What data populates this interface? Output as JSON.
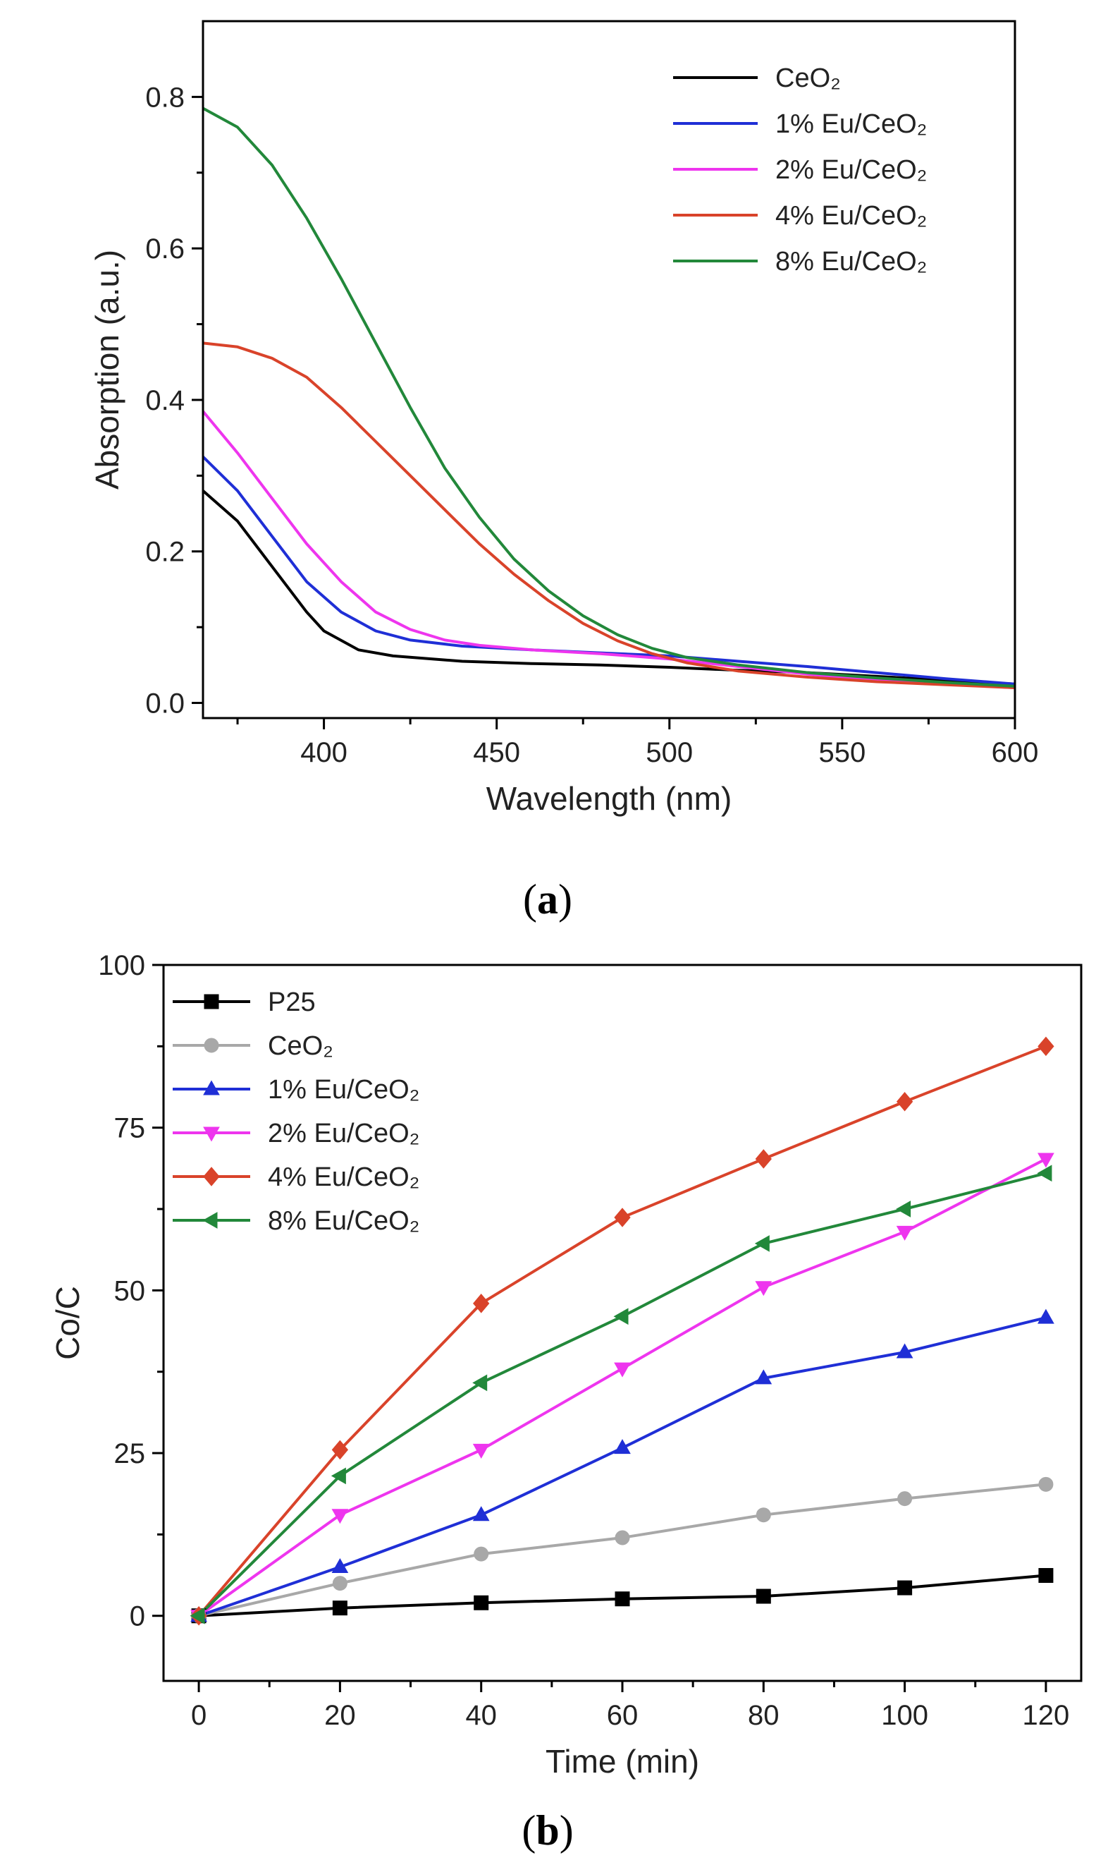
{
  "chart_data": [
    {
      "panel": "a",
      "panel_label": "a",
      "type": "line",
      "title": "",
      "xlabel": "Wavelength (nm)",
      "ylabel": "Absorption (a.u.)",
      "xlim": [
        365,
        600
      ],
      "ylim": [
        -0.02,
        0.9
      ],
      "xticks": [
        400,
        450,
        500,
        550,
        600
      ],
      "xtick_labels": [
        "400",
        "450",
        "500",
        "550",
        "600"
      ],
      "yticks": [
        0.0,
        0.2,
        0.4,
        0.6,
        0.8
      ],
      "ytick_labels": [
        "0.0",
        "0.2",
        "0.4",
        "0.6",
        "0.8"
      ],
      "legend_position": "top-right",
      "series": [
        {
          "name": "CeO₂",
          "color": "#000000",
          "x": [
            365,
            375,
            385,
            395,
            400,
            410,
            420,
            440,
            460,
            480,
            500,
            520,
            540,
            560,
            580,
            600
          ],
          "y": [
            0.28,
            0.24,
            0.18,
            0.12,
            0.095,
            0.07,
            0.062,
            0.055,
            0.052,
            0.05,
            0.047,
            0.043,
            0.04,
            0.035,
            0.03,
            0.025
          ]
        },
        {
          "name": "1% Eu/CeO₂",
          "color": "#1f2fd6",
          "x": [
            365,
            375,
            385,
            395,
            405,
            415,
            425,
            440,
            460,
            480,
            500,
            520,
            540,
            560,
            580,
            600
          ],
          "y": [
            0.325,
            0.28,
            0.22,
            0.16,
            0.12,
            0.095,
            0.083,
            0.075,
            0.07,
            0.066,
            0.062,
            0.055,
            0.048,
            0.04,
            0.032,
            0.025
          ]
        },
        {
          "name": "2% Eu/CeO₂",
          "color": "#ee35ee",
          "x": [
            365,
            375,
            385,
            395,
            405,
            415,
            425,
            435,
            445,
            460,
            480,
            500,
            520,
            540,
            560,
            580,
            600
          ],
          "y": [
            0.385,
            0.33,
            0.27,
            0.21,
            0.16,
            0.12,
            0.097,
            0.083,
            0.076,
            0.07,
            0.065,
            0.058,
            0.048,
            0.038,
            0.03,
            0.025,
            0.02
          ]
        },
        {
          "name": "4% Eu/CeO₂",
          "color": "#d9432a",
          "x": [
            365,
            375,
            385,
            395,
            405,
            415,
            425,
            435,
            445,
            455,
            465,
            475,
            485,
            495,
            505,
            520,
            540,
            560,
            580,
            600
          ],
          "y": [
            0.475,
            0.47,
            0.455,
            0.43,
            0.39,
            0.345,
            0.3,
            0.255,
            0.21,
            0.17,
            0.135,
            0.105,
            0.082,
            0.065,
            0.053,
            0.042,
            0.034,
            0.028,
            0.024,
            0.02
          ]
        },
        {
          "name": "8% Eu/CeO₂",
          "color": "#22883a",
          "x": [
            365,
            375,
            385,
            395,
            405,
            415,
            425,
            435,
            445,
            455,
            465,
            475,
            485,
            495,
            505,
            520,
            540,
            560,
            580,
            600
          ],
          "y": [
            0.785,
            0.76,
            0.71,
            0.64,
            0.56,
            0.475,
            0.39,
            0.31,
            0.245,
            0.19,
            0.148,
            0.115,
            0.09,
            0.072,
            0.06,
            0.05,
            0.04,
            0.033,
            0.027,
            0.022
          ]
        }
      ]
    },
    {
      "panel": "b",
      "panel_label": "b",
      "type": "line",
      "title": "",
      "xlabel": "Time (min)",
      "ylabel": "Co/C",
      "xlim": [
        -5,
        125
      ],
      "ylim": [
        -10,
        100
      ],
      "xticks": [
        0,
        20,
        40,
        60,
        80,
        100,
        120
      ],
      "xtick_labels": [
        "0",
        "20",
        "40",
        "60",
        "80",
        "100",
        "120"
      ],
      "yticks": [
        0,
        25,
        50,
        75,
        100
      ],
      "ytick_labels": [
        "0",
        "25",
        "50",
        "75",
        "100"
      ],
      "legend_position": "top-left",
      "x": [
        0,
        20,
        40,
        60,
        80,
        100,
        120
      ],
      "series": [
        {
          "name": "P25",
          "color": "#000000",
          "marker": "square",
          "values": [
            0,
            1.2,
            2.0,
            2.6,
            3.0,
            4.3,
            6.2
          ]
        },
        {
          "name": "CeO₂",
          "color": "#a8a8a8",
          "marker": "circle",
          "values": [
            0,
            5.0,
            9.5,
            12.0,
            15.5,
            18.0,
            20.2
          ]
        },
        {
          "name": "1% Eu/CeO₂",
          "color": "#1f2fd6",
          "marker": "triangle-up",
          "values": [
            0,
            7.5,
            15.5,
            25.8,
            36.5,
            40.5,
            45.8
          ]
        },
        {
          "name": "2% Eu/CeO₂",
          "color": "#ee35ee",
          "marker": "triangle-down",
          "values": [
            0,
            15.5,
            25.5,
            38.0,
            50.5,
            59.0,
            70.2
          ]
        },
        {
          "name": "4% Eu/CeO₂",
          "color": "#d9432a",
          "marker": "diamond",
          "values": [
            0,
            25.5,
            48.0,
            61.2,
            70.2,
            79.0,
            87.5
          ]
        },
        {
          "name": "8% Eu/CeO₂",
          "color": "#22883a",
          "marker": "triangle-left",
          "values": [
            0,
            21.5,
            35.8,
            46.0,
            57.2,
            62.5,
            68.0
          ]
        }
      ]
    }
  ]
}
